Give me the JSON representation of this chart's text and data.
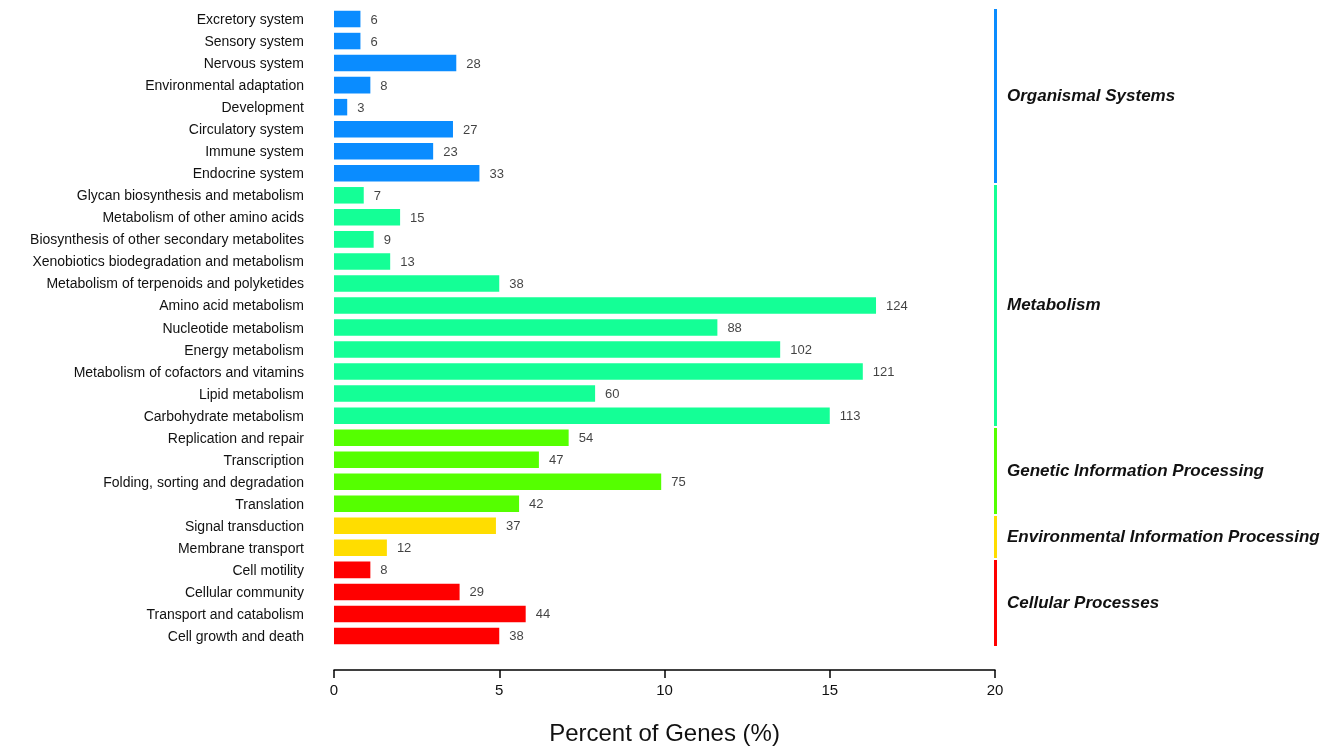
{
  "chart_data": {
    "type": "bar",
    "orientation": "horizontal",
    "xlabel": "Percent of Genes (%)",
    "categories": [
      "Excretory system",
      "Sensory system",
      "Nervous system",
      "Environmental adaptation",
      "Development",
      "Circulatory system",
      "Immune system",
      "Endocrine system",
      "Glycan biosynthesis and metabolism",
      "Metabolism of other amino acids",
      "Biosynthesis of other secondary metabolites",
      "Xenobiotics biodegradation and metabolism",
      "Metabolism of terpenoids and polyketides",
      "Amino acid metabolism",
      "Nucleotide metabolism",
      "Energy metabolism",
      "Metabolism of cofactors and vitamins",
      "Lipid metabolism",
      "Carbohydrate metabolism",
      "Replication and repair",
      "Transcription",
      "Folding, sorting and degradation",
      "Translation",
      "Signal transduction",
      "Membrane transport",
      "Cell motility",
      "Cellular community",
      "Transport and catabolism",
      "Cell growth and death"
    ],
    "values": [
      0.8,
      0.8,
      3.7,
      1.1,
      0.4,
      3.6,
      3.0,
      4.4,
      0.9,
      2.0,
      1.2,
      1.7,
      5.0,
      16.4,
      11.6,
      13.5,
      16.0,
      7.9,
      15.0,
      7.1,
      6.2,
      9.9,
      5.6,
      4.9,
      1.6,
      1.1,
      3.8,
      5.8,
      5.0
    ],
    "colors": [
      "#0a8cff",
      "#0a8cff",
      "#0a8cff",
      "#0a8cff",
      "#0a8cff",
      "#0a8cff",
      "#0a8cff",
      "#0a8cff",
      "#14ff96",
      "#14ff96",
      "#14ff96",
      "#14ff96",
      "#14ff96",
      "#14ff96",
      "#14ff96",
      "#14ff96",
      "#14ff96",
      "#14ff96",
      "#14ff96",
      "#55ff00",
      "#55ff00",
      "#55ff00",
      "#55ff00",
      "#ffdd00",
      "#ffdd00",
      "#ff0000",
      "#ff0000",
      "#ff0000",
      "#ff0000"
    ],
    "xlim": [
      0,
      20
    ],
    "xticks": [
      0,
      5,
      10,
      15,
      20
    ],
    "grid": false,
    "annotations": [
      {
        "text": "6",
        "x": 0.8,
        "y": "Excretory system"
      },
      {
        "text": "6",
        "x": 0.8,
        "y": "Sensory system"
      },
      {
        "text": "28",
        "x": 3.7,
        "y": "Nervous system"
      },
      {
        "text": "8",
        "x": 1.1,
        "y": "Environmental adaptation"
      },
      {
        "text": "3",
        "x": 0.4,
        "y": "Development"
      },
      {
        "text": "27",
        "x": 3.6,
        "y": "Circulatory system"
      },
      {
        "text": "23",
        "x": 3.0,
        "y": "Immune system"
      },
      {
        "text": "33",
        "x": 4.4,
        "y": "Endocrine system"
      },
      {
        "text": "7",
        "x": 0.9,
        "y": "Glycan biosynthesis and metabolism"
      },
      {
        "text": "15",
        "x": 2.0,
        "y": "Metabolism of other amino acids"
      },
      {
        "text": "9",
        "x": 1.2,
        "y": "Biosynthesis of other secondary metabolites"
      },
      {
        "text": "13",
        "x": 1.7,
        "y": "Xenobiotics biodegradation and metabolism"
      },
      {
        "text": "38",
        "x": 5.0,
        "y": "Metabolism of terpenoids and polyketides"
      },
      {
        "text": "124",
        "x": 16.4,
        "y": "Amino acid metabolism"
      },
      {
        "text": "88",
        "x": 11.6,
        "y": "Nucleotide metabolism"
      },
      {
        "text": "102",
        "x": 13.5,
        "y": "Energy metabolism"
      },
      {
        "text": "121",
        "x": 16.0,
        "y": "Metabolism of cofactors and vitamins"
      },
      {
        "text": "60",
        "x": 7.9,
        "y": "Lipid metabolism"
      },
      {
        "text": "113",
        "x": 15.0,
        "y": "Carbohydrate metabolism"
      },
      {
        "text": "54",
        "x": 7.1,
        "y": "Replication and repair"
      },
      {
        "text": "47",
        "x": 6.2,
        "y": "Transcription"
      },
      {
        "text": "75",
        "x": 9.9,
        "y": "Folding, sorting and degradation"
      },
      {
        "text": "42",
        "x": 5.6,
        "y": "Translation"
      },
      {
        "text": "37",
        "x": 4.9,
        "y": "Signal transduction"
      },
      {
        "text": "12",
        "x": 1.6,
        "y": "Membrane transport"
      },
      {
        "text": "8",
        "x": 1.1,
        "y": "Cell motility"
      },
      {
        "text": "29",
        "x": 3.8,
        "y": "Cellular community"
      },
      {
        "text": "44",
        "x": 5.8,
        "y": "Transport and catabolism"
      },
      {
        "text": "38",
        "x": 5.0,
        "y": "Cell growth and death"
      },
      "Organismal Systems",
      "Metabolism",
      "Genetic Information Processing",
      "Environmental Information Processing",
      "Cellular Processes"
    ]
  }
}
